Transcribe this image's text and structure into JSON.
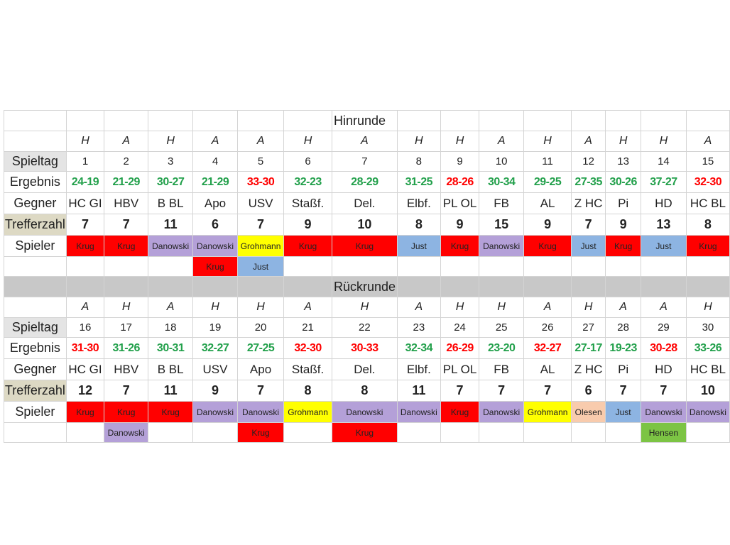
{
  "row_labels": [
    "Spieltag",
    "Ergebnis",
    "Gegner",
    "Trefferzahl",
    "Spieler"
  ],
  "player_colors": {
    "Krug": "#ff0000",
    "Danowski": "#b4a0d8",
    "Grohmann": "#ffff00",
    "Just": "#8db4e2",
    "Olesen": "#f8cbad",
    "Hensen": "#7cc444"
  },
  "sections": [
    {
      "title": "Hinrunde",
      "venue": [
        "H",
        "A",
        "H",
        "A",
        "A",
        "H",
        "A",
        "H",
        "H",
        "A",
        "H",
        "A",
        "H",
        "H",
        "A"
      ],
      "spieltag": [
        1,
        2,
        3,
        4,
        5,
        6,
        7,
        8,
        9,
        10,
        11,
        12,
        13,
        14,
        15
      ],
      "results": [
        "24-19",
        "21-29",
        "30-27",
        "21-29",
        "33-30",
        "32-23",
        "28-29",
        "31-25",
        "28-26",
        "30-34",
        "29-25",
        "27-35",
        "30-26",
        "37-27",
        "32-30"
      ],
      "result_colors": [
        "#22a04b",
        "#22a04b",
        "#22a04b",
        "#22a04b",
        "#ff0000",
        "#22a04b",
        "#22a04b",
        "#22a04b",
        "#ff0000",
        "#22a04b",
        "#22a04b",
        "#22a04b",
        "#22a04b",
        "#22a04b",
        "#ff0000"
      ],
      "opponents": [
        "HC GI",
        "HBV",
        "B BL",
        "Apo",
        "USV",
        "Staßf.",
        "Del.",
        "Elbf.",
        "PL OL",
        "FB",
        "AL",
        "Z HC",
        "Pi",
        "HD",
        "HC BL"
      ],
      "goals": [
        7,
        7,
        11,
        6,
        7,
        9,
        10,
        8,
        9,
        15,
        9,
        7,
        9,
        13,
        8
      ],
      "players": [
        "Krug",
        "Krug",
        "Danowski",
        "Danowski",
        "Grohmann",
        "Krug",
        "Krug",
        "Just",
        "Krug",
        "Danowski",
        "Krug",
        "Just",
        "Krug",
        "Just",
        "Krug"
      ],
      "players2": [
        null,
        null,
        null,
        "Krug",
        "Just",
        null,
        null,
        null,
        null,
        null,
        null,
        null,
        null,
        null,
        null
      ]
    },
    {
      "title": "Rückrunde",
      "venue": [
        "A",
        "H",
        "A",
        "H",
        "H",
        "A",
        "H",
        "A",
        "H",
        "H",
        "A",
        "H",
        "A",
        "A",
        "H"
      ],
      "spieltag": [
        16,
        17,
        18,
        19,
        20,
        21,
        22,
        23,
        24,
        25,
        26,
        27,
        28,
        29,
        30
      ],
      "results": [
        "31-30",
        "31-26",
        "30-31",
        "32-27",
        "27-25",
        "32-30",
        "30-33",
        "32-34",
        "26-29",
        "23-20",
        "32-27",
        "27-17",
        "19-23",
        "30-28",
        "33-26"
      ],
      "result_colors": [
        "#ff0000",
        "#22a04b",
        "#22a04b",
        "#22a04b",
        "#22a04b",
        "#ff0000",
        "#ff0000",
        "#22a04b",
        "#ff0000",
        "#22a04b",
        "#ff0000",
        "#22a04b",
        "#22a04b",
        "#ff0000",
        "#22a04b"
      ],
      "opponents": [
        "HC GI",
        "HBV",
        "B BL",
        "USV",
        "Apo",
        "Staßf.",
        "Del.",
        "Elbf.",
        "PL OL",
        "FB",
        "AL",
        "Z HC",
        "Pi",
        "HD",
        "HC BL"
      ],
      "goals": [
        12,
        7,
        11,
        9,
        7,
        8,
        8,
        11,
        7,
        7,
        7,
        6,
        7,
        7,
        10
      ],
      "players": [
        "Krug",
        "Krug",
        "Krug",
        "Danowski",
        "Danowski",
        "Grohmann",
        "Danowski",
        "Danowski",
        "Krug",
        "Danowski",
        "Grohmann",
        "Olesen",
        "Just",
        "Danowski",
        "Danowski"
      ],
      "players2": [
        null,
        "Danowski",
        null,
        null,
        "Krug",
        null,
        "Krug",
        null,
        null,
        null,
        null,
        null,
        null,
        "Hensen",
        null
      ]
    }
  ]
}
